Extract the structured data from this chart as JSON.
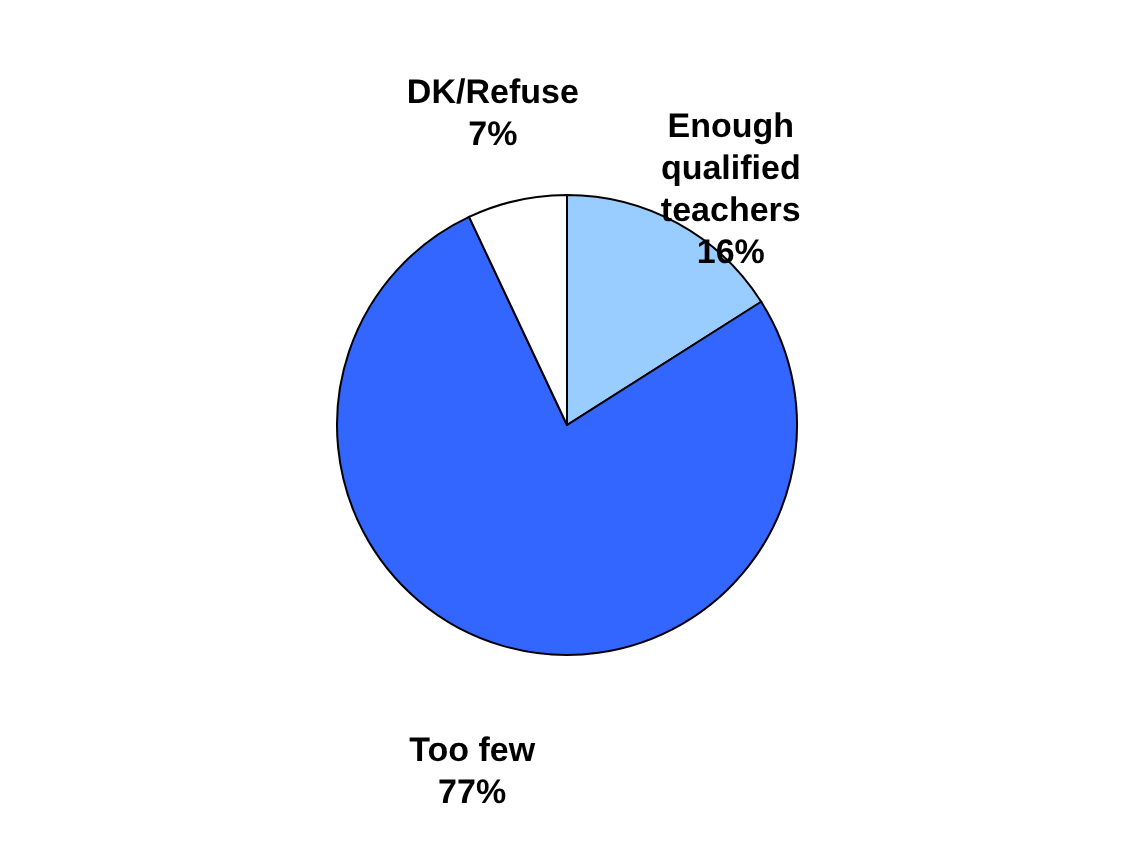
{
  "chart_data": {
    "type": "pie",
    "categories": [
      "Enough qualified teachers",
      "Too few",
      "DK/Refuse"
    ],
    "values": [
      16,
      77,
      7
    ],
    "colors": [
      "#99ccff",
      "#3366ff",
      "#ffffff"
    ],
    "value_labels": [
      "16%",
      "77%",
      "7%"
    ],
    "legend": false
  }
}
